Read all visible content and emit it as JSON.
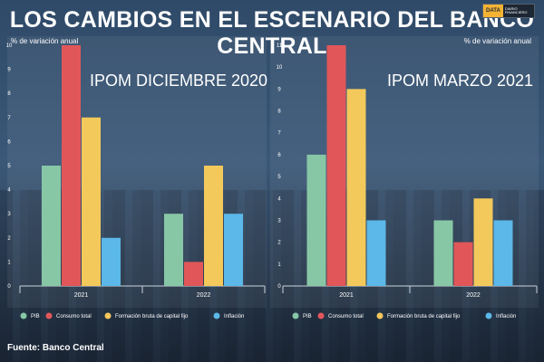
{
  "title": "LOS CAMBIOS EN EL ESCENARIO DEL BANCO CENTRAL",
  "logo": {
    "left": "DATA",
    "right": "DIARIO FINANCIERO"
  },
  "source": "Fuente: Banco Central",
  "colors": {
    "PIB": "#88c7a6",
    "Consumo total": "#e15759",
    "Formación bruta de capital fijo": "#f3c95b",
    "Inflación": "#5bb8e8"
  },
  "chart_data": [
    {
      "type": "bar",
      "title": "IPOM DICIEMBRE 2020",
      "ylabel": "% de variación anual",
      "ylim": [
        0,
        10
      ],
      "yticks": [
        0,
        1,
        2,
        3,
        4,
        5,
        6,
        7,
        8,
        9,
        10
      ],
      "categories": [
        "2021",
        "2022"
      ],
      "legend": "bottom",
      "series": [
        {
          "name": "PIB",
          "values": [
            5,
            3
          ]
        },
        {
          "name": "Consumo total",
          "values": [
            10,
            1
          ]
        },
        {
          "name": "Formación bruta de capital fijo",
          "values": [
            7,
            5
          ]
        },
        {
          "name": "Inflación",
          "values": [
            2,
            3
          ]
        }
      ]
    },
    {
      "type": "bar",
      "title": "IPOM MARZO 2021",
      "ylabel": "% de variación anual",
      "ylim": [
        0,
        11
      ],
      "yticks": [
        0,
        1,
        2,
        3,
        4,
        5,
        6,
        7,
        8,
        9,
        10,
        11
      ],
      "categories": [
        "2021",
        "2022"
      ],
      "legend": "bottom",
      "series": [
        {
          "name": "PIB",
          "values": [
            6,
            3
          ]
        },
        {
          "name": "Consumo total",
          "values": [
            11,
            2
          ]
        },
        {
          "name": "Formación bruta de capital fijo",
          "values": [
            9,
            4
          ]
        },
        {
          "name": "Inflación",
          "values": [
            3,
            3
          ]
        }
      ]
    }
  ]
}
